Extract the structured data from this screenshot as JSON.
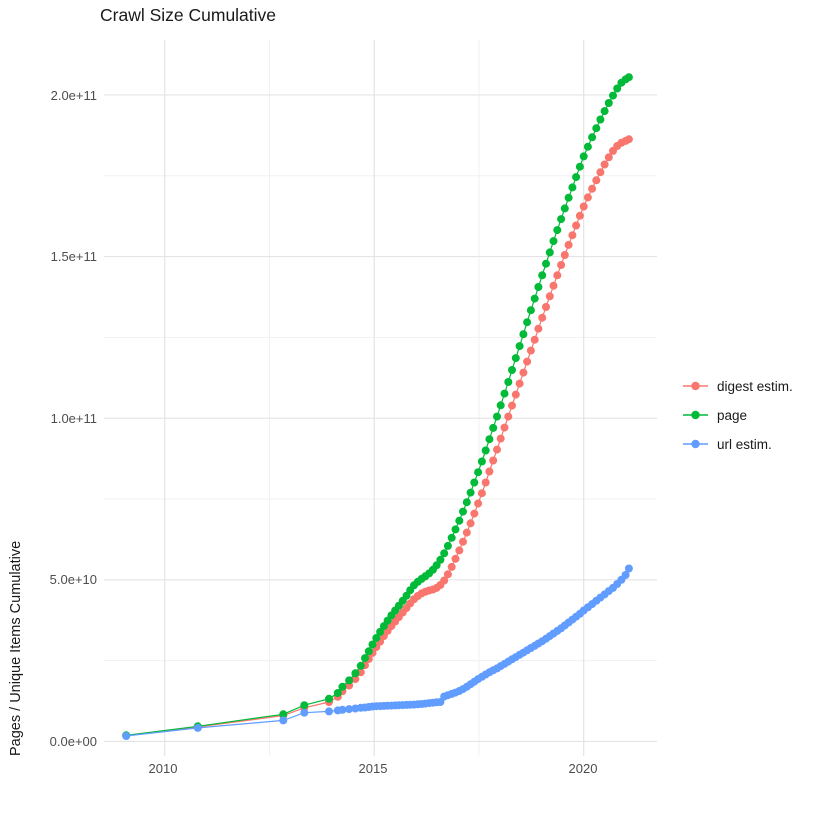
{
  "chart_data": {
    "type": "line",
    "title": "Crawl Size Cumulative",
    "xlabel": "",
    "ylabel": "Pages / Unique Items Cumulative",
    "grid": true,
    "legend_position": "right",
    "xlim": [
      2008.55,
      2021.75
    ],
    "ylim_billions": [
      -4.5,
      217
    ],
    "y_scale_factor": 1000000000,
    "x_ticks": [
      {
        "value": 2010,
        "label": "2010"
      },
      {
        "value": 2015,
        "label": "2015"
      },
      {
        "value": 2020,
        "label": "2020"
      }
    ],
    "x_minor_ticks": [
      2012.5,
      2017.5
    ],
    "y_ticks": [
      {
        "value_billions": 0,
        "label": "0.0e+00"
      },
      {
        "value_billions": 50,
        "label": "5.0e+10"
      },
      {
        "value_billions": 100,
        "label": "1.0e+11"
      },
      {
        "value_billions": 150,
        "label": "1.5e+11"
      },
      {
        "value_billions": 200,
        "label": "2.0e+11"
      }
    ],
    "y_minor_ticks_billions": [
      25,
      75,
      125,
      175
    ],
    "colors": {
      "digest_estim": "#F8766D",
      "page": "#00BA38",
      "url_estim": "#619CFF",
      "grid_major": "#E4E4E4",
      "grid_minor": "#F1F1F1"
    },
    "legend": {
      "entries": [
        {
          "name": "digest estim.",
          "color": "#F8766D"
        },
        {
          "name": "page",
          "color": "#00BA38"
        },
        {
          "name": "url estim.",
          "color": "#619CFF"
        }
      ]
    },
    "x_years": [
      2009.08,
      2010.79,
      2012.83,
      2013.33,
      2013.92,
      2014.13,
      2014.24,
      2014.4,
      2014.55,
      2014.68,
      2014.78,
      2014.87,
      2014.96,
      2015.05,
      2015.14,
      2015.23,
      2015.32,
      2015.41,
      2015.5,
      2015.59,
      2015.68,
      2015.77,
      2015.86,
      2015.95,
      2016.04,
      2016.13,
      2016.22,
      2016.31,
      2016.4,
      2016.49,
      2016.58,
      2016.67,
      2016.76,
      2016.85,
      2016.94,
      2017.03,
      2017.12,
      2017.21,
      2017.3,
      2017.39,
      2017.48,
      2017.57,
      2017.66,
      2017.75,
      2017.84,
      2017.93,
      2018.02,
      2018.11,
      2018.2,
      2018.29,
      2018.38,
      2018.47,
      2018.56,
      2018.65,
      2018.74,
      2018.83,
      2018.92,
      2019.01,
      2019.1,
      2019.19,
      2019.28,
      2019.37,
      2019.46,
      2019.55,
      2019.64,
      2019.73,
      2019.82,
      2019.91,
      2020.0,
      2020.1,
      2020.2,
      2020.3,
      2020.4,
      2020.5,
      2020.6,
      2020.7,
      2020.8,
      2020.9,
      2021.0,
      2021.08
    ],
    "series": [
      {
        "name": "digest estim.",
        "color": "#F8766D",
        "y_billions": [
          1.8,
          4.5,
          8.0,
          10.4,
          12.2,
          13.8,
          15.5,
          17.3,
          19.3,
          21.4,
          23.6,
          25.5,
          27.4,
          29.2,
          30.9,
          32.6,
          34.2,
          35.7,
          37.1,
          38.5,
          39.9,
          41.3,
          42.7,
          44.0,
          45.0,
          45.8,
          46.3,
          46.7,
          47.0,
          47.5,
          48.4,
          49.8,
          51.7,
          54.0,
          56.5,
          59.1,
          61.8,
          64.6,
          67.5,
          70.5,
          73.6,
          76.8,
          80.1,
          83.5,
          86.9,
          90.3,
          93.7,
          97.1,
          100.5,
          103.9,
          107.3,
          110.7,
          114.1,
          117.5,
          120.9,
          124.3,
          127.7,
          131.1,
          134.4,
          137.7,
          141.0,
          144.2,
          147.4,
          150.5,
          153.6,
          156.6,
          159.6,
          162.6,
          165.5,
          168.3,
          171.0,
          173.6,
          176.1,
          178.5,
          180.7,
          182.7,
          184.2,
          185.2,
          185.8,
          186.3
        ]
      },
      {
        "name": "page",
        "color": "#00BA38",
        "y_billions": [
          1.9,
          4.7,
          8.4,
          11.2,
          13.2,
          15.0,
          16.9,
          18.9,
          21.1,
          23.4,
          25.8,
          27.9,
          30.0,
          32.0,
          33.9,
          35.7,
          37.4,
          39.0,
          40.5,
          42.0,
          43.5,
          45.1,
          46.8,
          48.3,
          49.4,
          50.3,
          51.1,
          52.0,
          53.1,
          54.5,
          56.2,
          58.2,
          60.5,
          63.0,
          65.6,
          68.3,
          71.1,
          74.0,
          77.0,
          80.1,
          83.3,
          86.6,
          90.0,
          93.5,
          97.0,
          100.5,
          104.0,
          107.6,
          111.2,
          114.9,
          118.6,
          122.3,
          126.0,
          129.7,
          133.4,
          137.0,
          140.6,
          144.2,
          147.8,
          151.3,
          154.8,
          158.2,
          161.6,
          164.9,
          168.2,
          171.4,
          174.6,
          177.8,
          181.0,
          184.0,
          186.9,
          189.7,
          192.4,
          195.0,
          197.5,
          199.8,
          202.0,
          203.8,
          204.8,
          205.5
        ]
      },
      {
        "name": "url estim.",
        "color": "#619CFF",
        "y_billions": [
          1.7,
          4.2,
          6.5,
          8.9,
          9.3,
          9.6,
          9.8,
          10.0,
          10.2,
          10.4,
          10.5,
          10.65,
          10.8,
          10.9,
          10.95,
          11.0,
          11.05,
          11.1,
          11.15,
          11.2,
          11.25,
          11.3,
          11.35,
          11.4,
          11.5,
          11.6,
          11.7,
          11.85,
          12.0,
          12.1,
          12.2,
          13.9,
          14.3,
          14.7,
          15.1,
          15.6,
          16.2,
          16.9,
          17.7,
          18.5,
          19.3,
          20.0,
          20.7,
          21.4,
          22.0,
          22.6,
          23.3,
          24.0,
          24.7,
          25.4,
          26.1,
          26.8,
          27.5,
          28.2,
          28.9,
          29.6,
          30.3,
          31.0,
          31.8,
          32.6,
          33.4,
          34.2,
          35.0,
          35.9,
          36.8,
          37.7,
          38.6,
          39.5,
          40.5,
          41.5,
          42.5,
          43.5,
          44.5,
          45.5,
          46.5,
          47.5,
          48.7,
          50.0,
          51.5,
          53.5
        ]
      }
    ]
  }
}
